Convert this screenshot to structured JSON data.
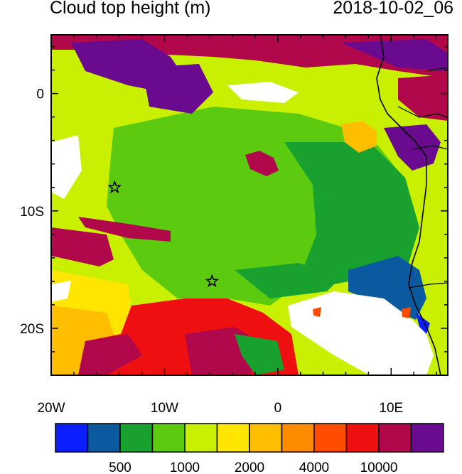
{
  "title": "Cloud top height (m)",
  "timestamp": "2018-10-02_06",
  "map": {
    "lon_range": [
      -20,
      15
    ],
    "lat_range": [
      -24,
      5
    ],
    "lon_ticks": [
      {
        "value": -20,
        "label": "20W"
      },
      {
        "value": -10,
        "label": "10W"
      },
      {
        "value": 0,
        "label": "0"
      },
      {
        "value": 10,
        "label": "10E"
      }
    ],
    "lat_ticks": [
      {
        "value": 0,
        "label": "0"
      },
      {
        "value": -10,
        "label": "10S"
      },
      {
        "value": -20,
        "label": "20S"
      }
    ],
    "markers": [
      {
        "name": "star-marker-1",
        "lon": -14.4,
        "lat": -8.0
      },
      {
        "name": "star-marker-2",
        "lon": -5.8,
        "lat": -16.0
      }
    ]
  },
  "colorbar": {
    "colors": [
      "#0a1eff",
      "#0b5aa0",
      "#18a12e",
      "#5ccb10",
      "#c8f000",
      "#ffe600",
      "#ffbf00",
      "#ff8c00",
      "#ff4d00",
      "#ee1010",
      "#b0084a",
      "#6a0a8e"
    ],
    "labels": [
      {
        "text": "500",
        "boundary": 2
      },
      {
        "text": "1000",
        "boundary": 4
      },
      {
        "text": "2000",
        "boundary": 6
      },
      {
        "text": "4000",
        "boundary": 8
      },
      {
        "text": "10000",
        "boundary": 10
      }
    ]
  }
}
